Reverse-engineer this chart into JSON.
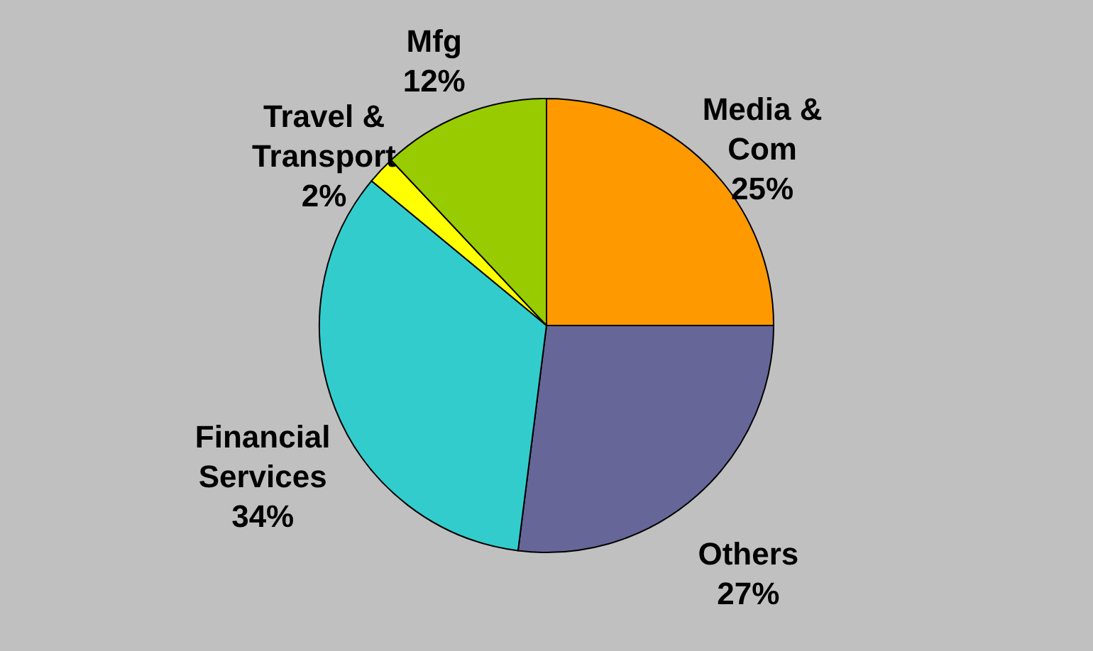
{
  "chart_data": {
    "type": "pie",
    "categories": [
      "Media & Com",
      "Others",
      "Financial Services",
      "Travel & Transport",
      "Mfg"
    ],
    "values": [
      25,
      27,
      34,
      2,
      12
    ],
    "value_labels": [
      "25%",
      "27%",
      "34%",
      "2%",
      "12%"
    ],
    "colors": [
      "#ff9900",
      "#666699",
      "#33cccc",
      "#ffff00",
      "#99cc00"
    ],
    "legend": false
  }
}
